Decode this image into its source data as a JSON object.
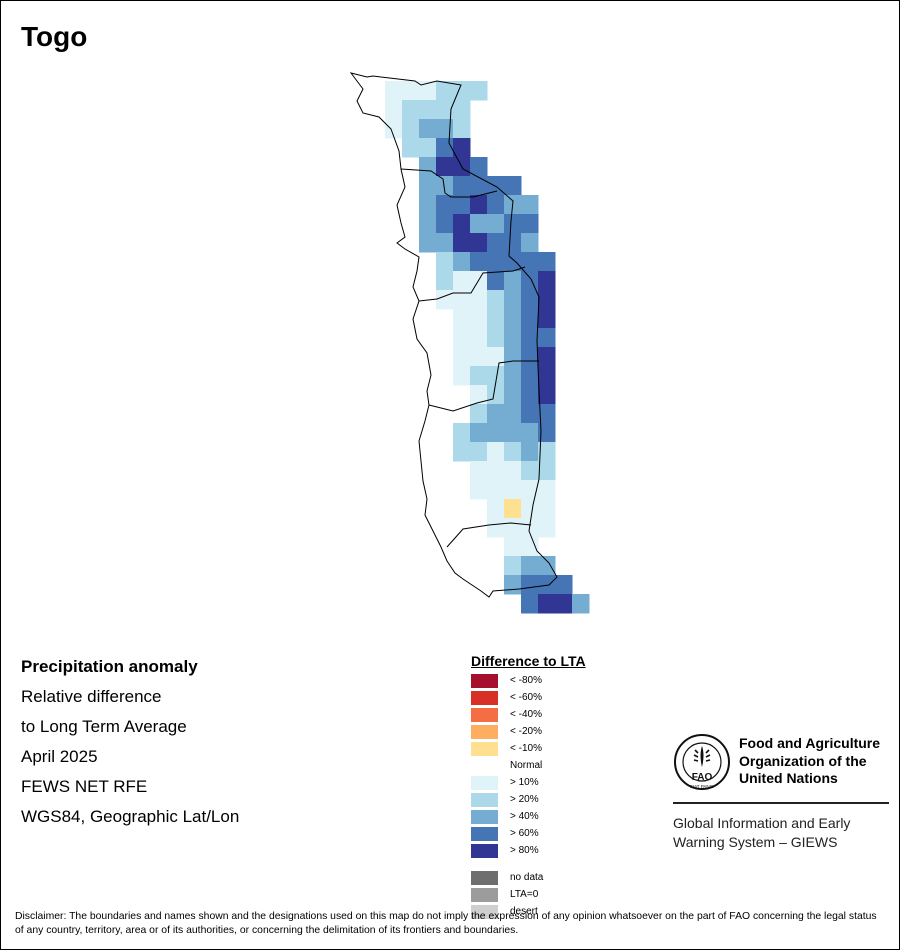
{
  "title": "Togo",
  "map_info": {
    "variable": "Precipitation anomaly",
    "line2": "Relative difference",
    "line3": "to Long Term Average",
    "period": "April 2025",
    "source": "FEWS NET RFE",
    "projection": "WGS84, Geographic Lat/Lon"
  },
  "legend": {
    "title": "Difference to LTA",
    "classes": [
      {
        "label": "< -80%",
        "color": "#a50f2d"
      },
      {
        "label": "< -60%",
        "color": "#d73027"
      },
      {
        "label": "< -40%",
        "color": "#f46d43"
      },
      {
        "label": "< -20%",
        "color": "#fdae61"
      },
      {
        "label": "< -10%",
        "color": "#fee090"
      },
      {
        "label": "Normal",
        "color": "#ffffff"
      },
      {
        "label": "> 10%",
        "color": "#e0f3f8"
      },
      {
        "label": "> 20%",
        "color": "#abd9e9"
      },
      {
        "label": "> 40%",
        "color": "#74add1"
      },
      {
        "label": "> 60%",
        "color": "#4575b4"
      },
      {
        "label": "> 80%",
        "color": "#313695"
      }
    ],
    "extra": [
      {
        "label": "no data",
        "color": "#6e6e6e"
      },
      {
        "label": "LTA=0",
        "color": "#9c9c9c"
      },
      {
        "label": "desert",
        "color": "#cfcfcf"
      }
    ]
  },
  "fao": {
    "logo_text": "FAO",
    "logo_motto": "FIAT PANIS",
    "org_name": "Food and Agriculture Organization of the United Nations",
    "giews": "Global Information and Early Warning System – GIEWS"
  },
  "disclaimer": "Disclaimer: The boundaries and names shown and the designations used on this map do not imply the expression of any opinion whatsoever on the part of FAO concerning the legal status of any country, territory, area or of its authorities, or concerning the delimitation of its frontiers and boundaries.",
  "map_data": {
    "country": "Togo",
    "raster_rows": [
      "..000111....",
      "..01111.....",
      "..01221.....",
      "...1134.....",
      "....2443....",
      "....223333..",
      "....2334322.",
      "....2342233.",
      "....2244332.",
      ".....1233333",
      ".....1003234",
      ".....0001234",
      "......001234",
      "......001233",
      "......000234",
      "......011234",
      ".......01234",
      ".......12233",
      "......122223",
      "......110121",
      ".......00011",
      ".......00000",
      "........0N00",
      "........0000",
      ".........00.",
      ".........122",
      ".........2333",
      "..........3442"
    ]
  }
}
